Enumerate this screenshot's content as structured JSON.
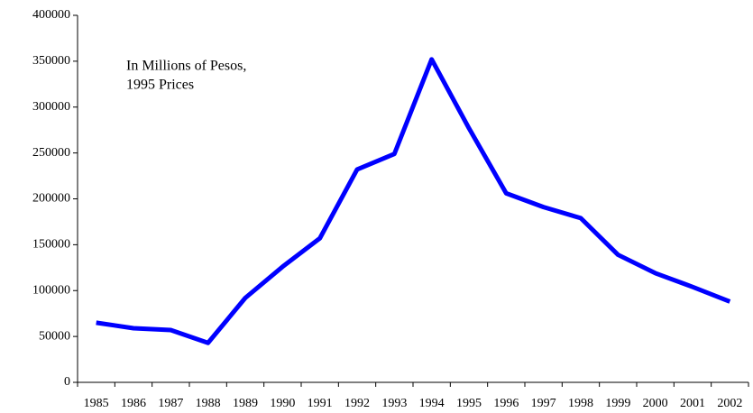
{
  "chart_data": {
    "type": "line",
    "annotation": [
      "In Millions of Pesos,",
      "1995 Prices"
    ],
    "categories": [
      "1985",
      "1986",
      "1987",
      "1988",
      "1989",
      "1990",
      "1991",
      "1992",
      "1993",
      "1994",
      "1995",
      "1996",
      "1997",
      "1998",
      "1999",
      "2000",
      "2001",
      "2002"
    ],
    "series": [
      {
        "color": "#0000ff",
        "values": [
          65000,
          59000,
          57000,
          43000,
          92000,
          126000,
          157000,
          232000,
          249000,
          352000,
          277000,
          206000,
          191000,
          179000,
          139000,
          119000,
          104000,
          88000
        ]
      }
    ],
    "ylim": [
      0,
      400000
    ],
    "yticks": [
      0,
      50000,
      100000,
      150000,
      200000,
      250000,
      300000,
      350000,
      400000
    ],
    "grid": false
  }
}
